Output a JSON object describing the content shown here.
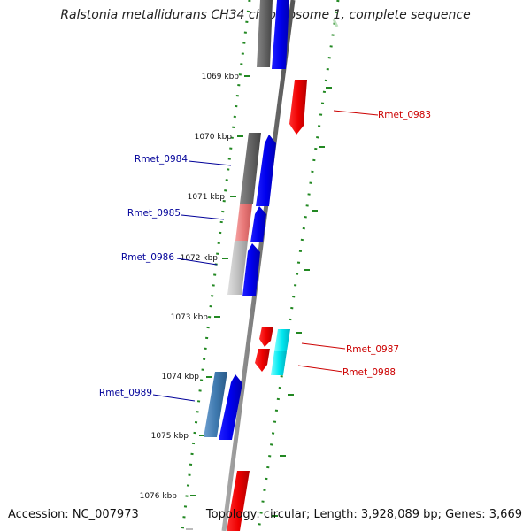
{
  "title": "Ralstonia metallidurans CH34 chromosome 1, complete sequence",
  "footer": {
    "accession": "Accession: NC_007973",
    "topology": "Topology: circular; Length: 3,928,089 bp; Genes: 3,669"
  },
  "ticks": [
    "1069 kbp",
    "1070 kbp",
    "1071 kbp",
    "1072 kbp",
    "1073 kbp",
    "1074 kbp",
    "1075 kbp",
    "1076 kbp"
  ],
  "genes": [
    {
      "name": "Rmet_0983",
      "strand": "reverse",
      "color": "#cc0000"
    },
    {
      "name": "Rmet_0984",
      "strand": "forward",
      "color": "#000099"
    },
    {
      "name": "Rmet_0985",
      "strand": "forward",
      "color": "#000099"
    },
    {
      "name": "Rmet_0986",
      "strand": "forward",
      "color": "#000099"
    },
    {
      "name": "Rmet_0987",
      "strand": "reverse",
      "color": "#cc0000"
    },
    {
      "name": "Rmet_0988",
      "strand": "reverse",
      "color": "#cc0000"
    },
    {
      "name": "Rmet_0989",
      "strand": "forward",
      "color": "#000099"
    }
  ],
  "colors": {
    "forward_gene": "#0000ee",
    "reverse_gene": "#ee0000",
    "backbone": "#888888",
    "tick_marks": "#228822",
    "cog_gray": "#666666",
    "cog_pink": "#e87878",
    "cog_lightgray": "#c0c0c0",
    "cog_steelblue": "#3f7ab0",
    "cog_cyan": "#00e8f0"
  }
}
